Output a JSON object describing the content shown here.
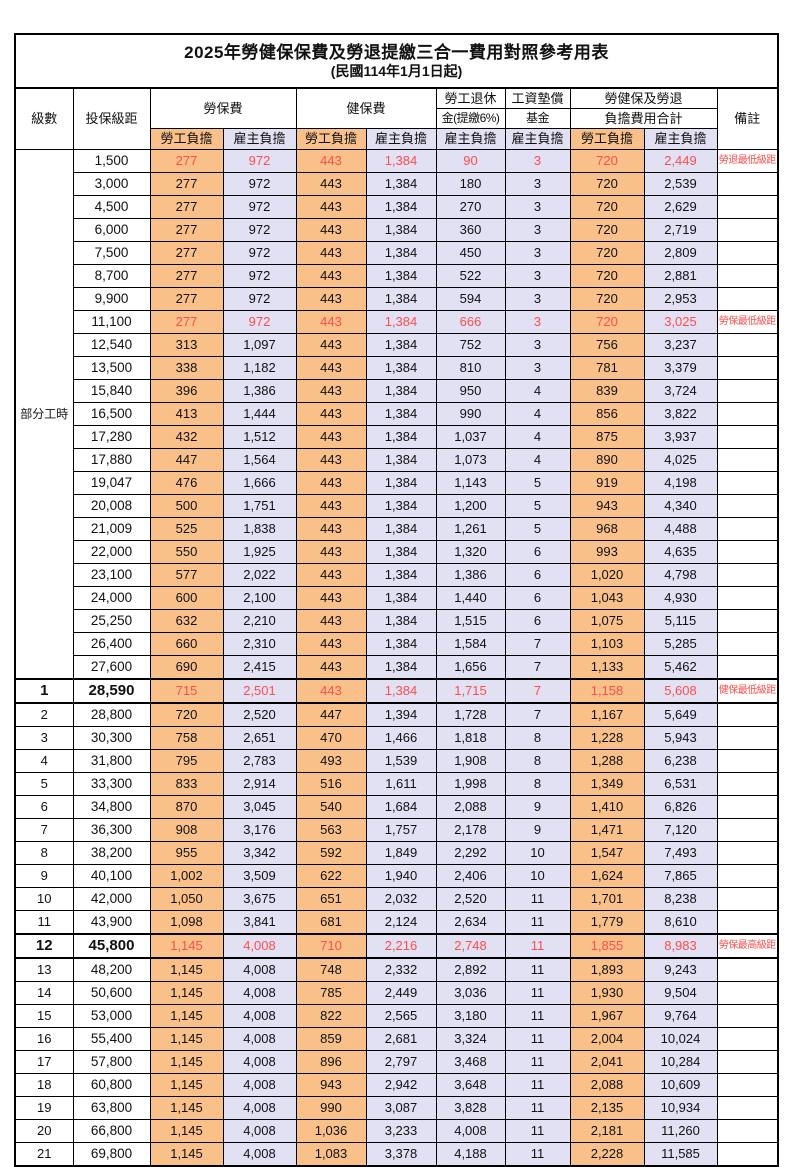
{
  "title": "2025年勞健保保費及勞退提繳三合一費用對照參考用表",
  "subtitle": "(民國114年1月1日起)",
  "colors": {
    "employee_bg": "#F9C189",
    "employer_bg": "#E2E0F3",
    "highlight_red": "#FF4D4D",
    "border": "#000000"
  },
  "header": {
    "level": "級數",
    "bracket": "投保級距",
    "labor_ins": "勞保費",
    "health_ins": "健保費",
    "pension_line1": "勞工退休",
    "pension_line2": "金(提繳6%)",
    "wage_fund_line1": "工資墊償",
    "wage_fund_line2": "基金",
    "total_line1": "勞健保及勞退",
    "total_line2": "負擔費用合計",
    "remark": "備註",
    "employee": "勞工負擔",
    "employer": "雇主負擔"
  },
  "part_time": {
    "label": "部分工時",
    "span": 23
  },
  "rows": [
    {
      "level": "",
      "bracket": "1,500",
      "v": [
        "277",
        "972",
        "443",
        "1,384",
        "90",
        "3",
        "720",
        "2,449"
      ],
      "remark": "勞退最低級距",
      "red": true
    },
    {
      "level": "",
      "bracket": "3,000",
      "v": [
        "277",
        "972",
        "443",
        "1,384",
        "180",
        "3",
        "720",
        "2,539"
      ],
      "remark": ""
    },
    {
      "level": "",
      "bracket": "4,500",
      "v": [
        "277",
        "972",
        "443",
        "1,384",
        "270",
        "3",
        "720",
        "2,629"
      ],
      "remark": ""
    },
    {
      "level": "",
      "bracket": "6,000",
      "v": [
        "277",
        "972",
        "443",
        "1,384",
        "360",
        "3",
        "720",
        "2,719"
      ],
      "remark": ""
    },
    {
      "level": "",
      "bracket": "7,500",
      "v": [
        "277",
        "972",
        "443",
        "1,384",
        "450",
        "3",
        "720",
        "2,809"
      ],
      "remark": ""
    },
    {
      "level": "",
      "bracket": "8,700",
      "v": [
        "277",
        "972",
        "443",
        "1,384",
        "522",
        "3",
        "720",
        "2,881"
      ],
      "remark": ""
    },
    {
      "level": "",
      "bracket": "9,900",
      "v": [
        "277",
        "972",
        "443",
        "1,384",
        "594",
        "3",
        "720",
        "2,953"
      ],
      "remark": ""
    },
    {
      "level": "",
      "bracket": "11,100",
      "v": [
        "277",
        "972",
        "443",
        "1,384",
        "666",
        "3",
        "720",
        "3,025"
      ],
      "remark": "勞保最低級距",
      "red": true
    },
    {
      "level": "",
      "bracket": "12,540",
      "v": [
        "313",
        "1,097",
        "443",
        "1,384",
        "752",
        "3",
        "756",
        "3,237"
      ],
      "remark": ""
    },
    {
      "level": "",
      "bracket": "13,500",
      "v": [
        "338",
        "1,182",
        "443",
        "1,384",
        "810",
        "3",
        "781",
        "3,379"
      ],
      "remark": ""
    },
    {
      "level": "",
      "bracket": "15,840",
      "v": [
        "396",
        "1,386",
        "443",
        "1,384",
        "950",
        "4",
        "839",
        "3,724"
      ],
      "remark": ""
    },
    {
      "level": "",
      "bracket": "16,500",
      "v": [
        "413",
        "1,444",
        "443",
        "1,384",
        "990",
        "4",
        "856",
        "3,822"
      ],
      "remark": ""
    },
    {
      "level": "",
      "bracket": "17,280",
      "v": [
        "432",
        "1,512",
        "443",
        "1,384",
        "1,037",
        "4",
        "875",
        "3,937"
      ],
      "remark": ""
    },
    {
      "level": "",
      "bracket": "17,880",
      "v": [
        "447",
        "1,564",
        "443",
        "1,384",
        "1,073",
        "4",
        "890",
        "4,025"
      ],
      "remark": ""
    },
    {
      "level": "",
      "bracket": "19,047",
      "v": [
        "476",
        "1,666",
        "443",
        "1,384",
        "1,143",
        "5",
        "919",
        "4,198"
      ],
      "remark": ""
    },
    {
      "level": "",
      "bracket": "20,008",
      "v": [
        "500",
        "1,751",
        "443",
        "1,384",
        "1,200",
        "5",
        "943",
        "4,340"
      ],
      "remark": ""
    },
    {
      "level": "",
      "bracket": "21,009",
      "v": [
        "525",
        "1,838",
        "443",
        "1,384",
        "1,261",
        "5",
        "968",
        "4,488"
      ],
      "remark": ""
    },
    {
      "level": "",
      "bracket": "22,000",
      "v": [
        "550",
        "1,925",
        "443",
        "1,384",
        "1,320",
        "6",
        "993",
        "4,635"
      ],
      "remark": ""
    },
    {
      "level": "",
      "bracket": "23,100",
      "v": [
        "577",
        "2,022",
        "443",
        "1,384",
        "1,386",
        "6",
        "1,020",
        "4,798"
      ],
      "remark": ""
    },
    {
      "level": "",
      "bracket": "24,000",
      "v": [
        "600",
        "2,100",
        "443",
        "1,384",
        "1,440",
        "6",
        "1,043",
        "4,930"
      ],
      "remark": ""
    },
    {
      "level": "",
      "bracket": "25,250",
      "v": [
        "632",
        "2,210",
        "443",
        "1,384",
        "1,515",
        "6",
        "1,075",
        "5,115"
      ],
      "remark": ""
    },
    {
      "level": "",
      "bracket": "26,400",
      "v": [
        "660",
        "2,310",
        "443",
        "1,384",
        "1,584",
        "7",
        "1,103",
        "5,285"
      ],
      "remark": ""
    },
    {
      "level": "",
      "bracket": "27,600",
      "v": [
        "690",
        "2,415",
        "443",
        "1,384",
        "1,656",
        "7",
        "1,133",
        "5,462"
      ],
      "remark": ""
    },
    {
      "level": "1",
      "bracket": "28,590",
      "v": [
        "715",
        "2,501",
        "443",
        "1,384",
        "1,715",
        "7",
        "1,158",
        "5,608"
      ],
      "remark": "健保最低級距",
      "red": true,
      "bold": true,
      "thick": true
    },
    {
      "level": "2",
      "bracket": "28,800",
      "v": [
        "720",
        "2,520",
        "447",
        "1,394",
        "1,728",
        "7",
        "1,167",
        "5,649"
      ],
      "remark": ""
    },
    {
      "level": "3",
      "bracket": "30,300",
      "v": [
        "758",
        "2,651",
        "470",
        "1,466",
        "1,818",
        "8",
        "1,228",
        "5,943"
      ],
      "remark": ""
    },
    {
      "level": "4",
      "bracket": "31,800",
      "v": [
        "795",
        "2,783",
        "493",
        "1,539",
        "1,908",
        "8",
        "1,288",
        "6,238"
      ],
      "remark": ""
    },
    {
      "level": "5",
      "bracket": "33,300",
      "v": [
        "833",
        "2,914",
        "516",
        "1,611",
        "1,998",
        "8",
        "1,349",
        "6,531"
      ],
      "remark": ""
    },
    {
      "level": "6",
      "bracket": "34,800",
      "v": [
        "870",
        "3,045",
        "540",
        "1,684",
        "2,088",
        "9",
        "1,410",
        "6,826"
      ],
      "remark": ""
    },
    {
      "level": "7",
      "bracket": "36,300",
      "v": [
        "908",
        "3,176",
        "563",
        "1,757",
        "2,178",
        "9",
        "1,471",
        "7,120"
      ],
      "remark": ""
    },
    {
      "level": "8",
      "bracket": "38,200",
      "v": [
        "955",
        "3,342",
        "592",
        "1,849",
        "2,292",
        "10",
        "1,547",
        "7,493"
      ],
      "remark": ""
    },
    {
      "level": "9",
      "bracket": "40,100",
      "v": [
        "1,002",
        "3,509",
        "622",
        "1,940",
        "2,406",
        "10",
        "1,624",
        "7,865"
      ],
      "remark": ""
    },
    {
      "level": "10",
      "bracket": "42,000",
      "v": [
        "1,050",
        "3,675",
        "651",
        "2,032",
        "2,520",
        "11",
        "1,701",
        "8,238"
      ],
      "remark": ""
    },
    {
      "level": "11",
      "bracket": "43,900",
      "v": [
        "1,098",
        "3,841",
        "681",
        "2,124",
        "2,634",
        "11",
        "1,779",
        "8,610"
      ],
      "remark": ""
    },
    {
      "level": "12",
      "bracket": "45,800",
      "v": [
        "1,145",
        "4,008",
        "710",
        "2,216",
        "2,748",
        "11",
        "1,855",
        "8,983"
      ],
      "remark": "勞保最高級距",
      "red": true,
      "bold": true,
      "thick": true
    },
    {
      "level": "13",
      "bracket": "48,200",
      "v": [
        "1,145",
        "4,008",
        "748",
        "2,332",
        "2,892",
        "11",
        "1,893",
        "9,243"
      ],
      "remark": ""
    },
    {
      "level": "14",
      "bracket": "50,600",
      "v": [
        "1,145",
        "4,008",
        "785",
        "2,449",
        "3,036",
        "11",
        "1,930",
        "9,504"
      ],
      "remark": ""
    },
    {
      "level": "15",
      "bracket": "53,000",
      "v": [
        "1,145",
        "4,008",
        "822",
        "2,565",
        "3,180",
        "11",
        "1,967",
        "9,764"
      ],
      "remark": ""
    },
    {
      "level": "16",
      "bracket": "55,400",
      "v": [
        "1,145",
        "4,008",
        "859",
        "2,681",
        "3,324",
        "11",
        "2,004",
        "10,024"
      ],
      "remark": ""
    },
    {
      "level": "17",
      "bracket": "57,800",
      "v": [
        "1,145",
        "4,008",
        "896",
        "2,797",
        "3,468",
        "11",
        "2,041",
        "10,284"
      ],
      "remark": ""
    },
    {
      "level": "18",
      "bracket": "60,800",
      "v": [
        "1,145",
        "4,008",
        "943",
        "2,942",
        "3,648",
        "11",
        "2,088",
        "10,609"
      ],
      "remark": ""
    },
    {
      "level": "19",
      "bracket": "63,800",
      "v": [
        "1,145",
        "4,008",
        "990",
        "3,087",
        "3,828",
        "11",
        "2,135",
        "10,934"
      ],
      "remark": ""
    },
    {
      "level": "20",
      "bracket": "66,800",
      "v": [
        "1,145",
        "4,008",
        "1,036",
        "3,233",
        "4,008",
        "11",
        "2,181",
        "11,260"
      ],
      "remark": ""
    },
    {
      "level": "21",
      "bracket": "69,800",
      "v": [
        "1,145",
        "4,008",
        "1,083",
        "3,378",
        "4,188",
        "11",
        "2,228",
        "11,585"
      ],
      "remark": ""
    }
  ]
}
